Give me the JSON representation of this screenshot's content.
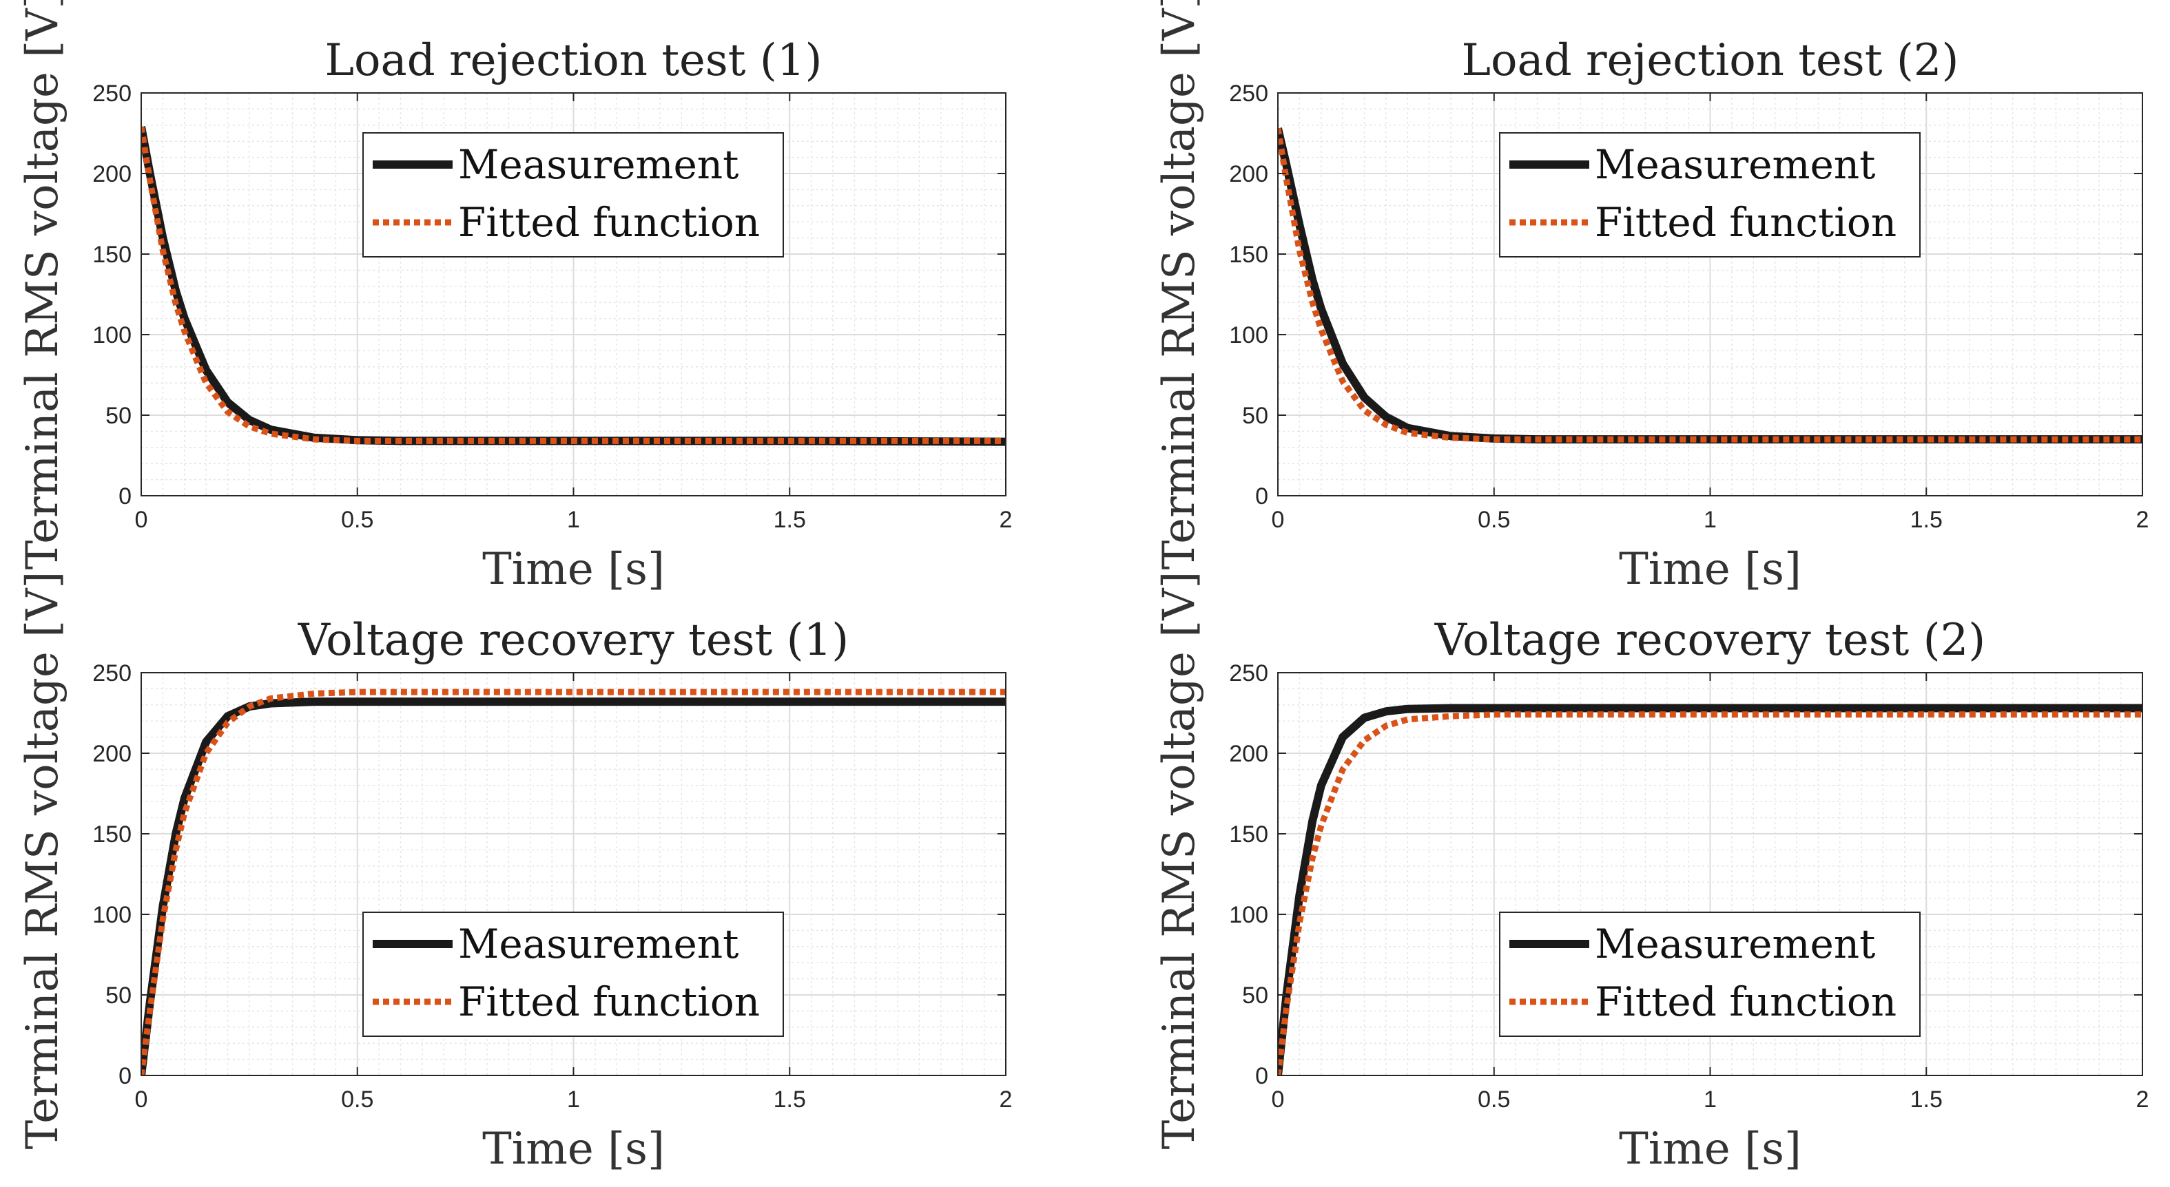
{
  "series_names": [
    "Measurement",
    "Fitted function"
  ],
  "colors": {
    "measurement": "#1a1a1a",
    "fitted": "#d95319",
    "grid_major": "#dcdcdc",
    "grid_minor": "#e6e6e6",
    "axes": "#262626"
  },
  "chart_data": [
    {
      "type": "line",
      "title": "Load rejection test (1)",
      "xlabel": "Time [s]",
      "ylabel": "Terminal RMS voltage [V]",
      "xlim": [
        0,
        2
      ],
      "ylim": [
        0,
        250
      ],
      "xticks": [
        "0",
        "0.5",
        "1",
        "1.5",
        "2"
      ],
      "yticks": [
        "0",
        "50",
        "100",
        "150",
        "200",
        "250"
      ],
      "xtick_values": [
        0,
        0.5,
        1,
        1.5,
        2
      ],
      "ytick_values": [
        0,
        50,
        100,
        150,
        200,
        250
      ],
      "grid": true,
      "legend": "top-center",
      "x": [
        0,
        0.02,
        0.05,
        0.08,
        0.1,
        0.15,
        0.2,
        0.25,
        0.3,
        0.4,
        0.5,
        0.6,
        0.8,
        1.0,
        1.5,
        2.0
      ],
      "series": [
        {
          "name": "Measurement",
          "values": [
            229,
            200,
            160,
            127,
            110,
            78,
            58,
            47,
            41,
            36,
            34.5,
            34,
            34,
            34,
            34,
            33.5
          ]
        },
        {
          "name": "Fitted function",
          "values": [
            229,
            196,
            152,
            119,
            102,
            70,
            52,
            43,
            38.5,
            35,
            34,
            34,
            34,
            34,
            34,
            34
          ]
        }
      ]
    },
    {
      "type": "line",
      "title": "Load rejection test (2)",
      "xlabel": "Time [s]",
      "ylabel": "Terminal RMS voltage [V]",
      "xlim": [
        0,
        2
      ],
      "ylim": [
        0,
        250
      ],
      "xticks": [
        "0",
        "0.5",
        "1",
        "1.5",
        "2"
      ],
      "yticks": [
        "0",
        "50",
        "100",
        "150",
        "200",
        "250"
      ],
      "xtick_values": [
        0,
        0.5,
        1,
        1.5,
        2
      ],
      "ytick_values": [
        0,
        50,
        100,
        150,
        200,
        250
      ],
      "grid": true,
      "legend": "top-center",
      "x": [
        0,
        0.02,
        0.05,
        0.08,
        0.1,
        0.15,
        0.2,
        0.25,
        0.3,
        0.4,
        0.5,
        0.6,
        0.8,
        1.0,
        1.5,
        2.0
      ],
      "series": [
        {
          "name": "Measurement",
          "values": [
            228,
            205,
            168,
            134,
            116,
            82,
            61,
            49,
            42,
            37,
            35.5,
            35,
            35,
            35,
            35,
            35
          ]
        },
        {
          "name": "Fitted function",
          "values": [
            228,
            196,
            152,
            120,
            103,
            71,
            53,
            44,
            39,
            36,
            35,
            35,
            35,
            35,
            35,
            35
          ]
        }
      ]
    },
    {
      "type": "line",
      "title": "Voltage recovery test (1)",
      "xlabel": "Time [s]",
      "ylabel": "Terminal RMS voltage [V]",
      "xlim": [
        0,
        2
      ],
      "ylim": [
        0,
        250
      ],
      "xticks": [
        "0",
        "0.5",
        "1",
        "1.5",
        "2"
      ],
      "yticks": [
        "0",
        "50",
        "100",
        "150",
        "200",
        "250"
      ],
      "xtick_values": [
        0,
        0.5,
        1,
        1.5,
        2
      ],
      "ytick_values": [
        0,
        50,
        100,
        150,
        200,
        250
      ],
      "grid": true,
      "legend": "bottom-center",
      "x": [
        0,
        0.02,
        0.05,
        0.08,
        0.1,
        0.15,
        0.2,
        0.25,
        0.3,
        0.4,
        0.5,
        0.6,
        0.8,
        1.0,
        1.5,
        2.0
      ],
      "series": [
        {
          "name": "Measurement",
          "values": [
            0,
            45,
            105,
            150,
            172,
            207,
            223,
            229,
            231,
            232,
            232,
            232,
            232,
            232,
            232,
            232
          ]
        },
        {
          "name": "Fitted function",
          "values": [
            0,
            40,
            97,
            140,
            163,
            200,
            219,
            229,
            234,
            237,
            238,
            238,
            238,
            238,
            238,
            238
          ]
        }
      ]
    },
    {
      "type": "line",
      "title": "Voltage recovery test (2)",
      "xlabel": "Time [s]",
      "ylabel": "Terminal RMS voltage [V]",
      "xlim": [
        0,
        2
      ],
      "ylim": [
        0,
        250
      ],
      "xticks": [
        "0",
        "0.5",
        "1",
        "1.5",
        "2"
      ],
      "yticks": [
        "0",
        "50",
        "100",
        "150",
        "200",
        "250"
      ],
      "xtick_values": [
        0,
        0.5,
        1,
        1.5,
        2
      ],
      "ytick_values": [
        0,
        50,
        100,
        150,
        200,
        250
      ],
      "grid": true,
      "legend": "bottom-center",
      "x": [
        0,
        0.02,
        0.05,
        0.08,
        0.1,
        0.15,
        0.2,
        0.25,
        0.3,
        0.4,
        0.5,
        0.6,
        0.8,
        1.0,
        1.5,
        2.0
      ],
      "series": [
        {
          "name": "Measurement",
          "values": [
            0,
            50,
            112,
            158,
            180,
            210,
            222,
            226,
            227.5,
            228,
            228,
            228,
            228,
            228,
            228,
            228
          ]
        },
        {
          "name": "Fitted function",
          "values": [
            0,
            42,
            95,
            135,
            155,
            190,
            208,
            217,
            221,
            223,
            224,
            224,
            224,
            224,
            224,
            224
          ]
        }
      ]
    }
  ]
}
